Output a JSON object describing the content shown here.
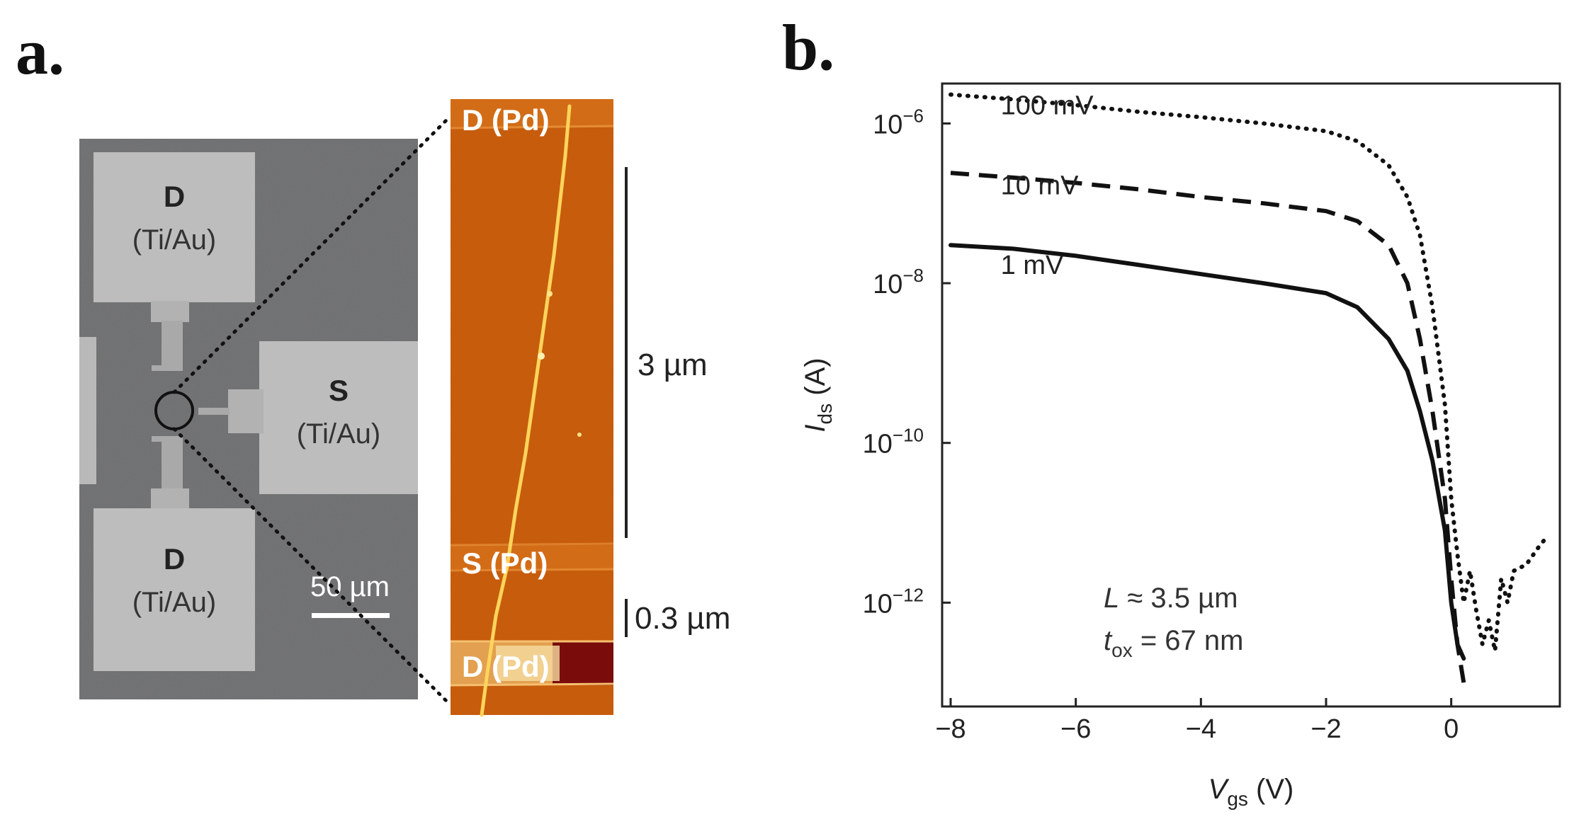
{
  "panel_a": {
    "letter": "a.",
    "sem": {
      "pads": [
        {
          "name": "D",
          "material": "(Ti/Au)"
        },
        {
          "name": "S",
          "material": "(Ti/Au)"
        },
        {
          "name": "D",
          "material": "(Ti/Au)"
        }
      ],
      "scale_bar_label": "50 µm"
    },
    "afm": {
      "labels": [
        "D (Pd)",
        "S (Pd)",
        "D (Pd)"
      ],
      "scale_long_label": "3 µm",
      "scale_short_label": "0.3 µm",
      "colors": {
        "background": "#c8580e",
        "tube": "#ffd45a",
        "electrode": "#e8892c"
      }
    }
  },
  "panel_b": {
    "letter": "b.",
    "annotations": {
      "length_symbol": "L",
      "length_rest": " ≈ 3.5 µm",
      "tox_symbol": "t",
      "tox_sub": "ox",
      "tox_rest": " = 67 nm"
    }
  },
  "chart_data": {
    "type": "line",
    "xlabel_symbol": "V",
    "xlabel_sub": "gs",
    "xlabel_unit": " (V)",
    "ylabel_symbol": "I",
    "ylabel_sub": "ds",
    "ylabel_unit": " (A)",
    "xlim": [
      -8,
      1.6
    ],
    "ylim_log10": [
      -13.3,
      -5.5
    ],
    "yscale": "log",
    "x_ticks": [
      -8,
      -6,
      -4,
      -2,
      0
    ],
    "x_tick_labels": [
      "−8",
      "−6",
      "−4",
      "−2",
      "0"
    ],
    "y_ticks_log10": [
      -6,
      -8,
      -10,
      -12
    ],
    "y_tick_labels": [
      {
        "base": "10",
        "exp": "−6"
      },
      {
        "base": "10",
        "exp": "−8"
      },
      {
        "base": "10",
        "exp": "−10"
      },
      {
        "base": "10",
        "exp": "−12"
      }
    ],
    "series": [
      {
        "name": "100 mV",
        "style": "dotted",
        "x": [
          -8,
          -7,
          -6,
          -5,
          -4,
          -3,
          -2,
          -1.5,
          -1,
          -0.7,
          -0.5,
          -0.3,
          -0.1,
          0,
          0.1,
          0.2,
          0.3,
          0.4,
          0.5,
          0.6,
          0.7,
          0.8,
          0.9,
          1.0,
          1.2,
          1.4,
          1.55
        ],
        "y": [
          2.3e-06,
          2e-06,
          1.7e-06,
          1.4e-06,
          1.2e-06,
          1e-06,
          8e-07,
          6e-07,
          3e-07,
          1.2e-07,
          4e-08,
          5e-09,
          3e-10,
          2e-11,
          4e-12,
          1e-12,
          2.5e-12,
          8e-13,
          3e-13,
          6e-13,
          2.5e-13,
          2e-12,
          1e-12,
          2.5e-12,
          3e-12,
          5e-12,
          7e-12
        ]
      },
      {
        "name": "10 mV",
        "style": "dashed",
        "x": [
          -8,
          -7,
          -6,
          -5,
          -4,
          -3,
          -2,
          -1.5,
          -1,
          -0.7,
          -0.5,
          -0.3,
          -0.1,
          0,
          0.1,
          0.2
        ],
        "y": [
          2.4e-07,
          2.1e-07,
          1.8e-07,
          1.5e-07,
          1.2e-07,
          1e-07,
          8e-08,
          6e-08,
          3e-08,
          1e-08,
          2e-09,
          2.5e-10,
          2e-11,
          2e-12,
          3e-13,
          1e-13
        ]
      },
      {
        "name": "1 mV",
        "style": "solid",
        "x": [
          -8,
          -7,
          -6,
          -5,
          -4,
          -3,
          -2,
          -1.5,
          -1,
          -0.7,
          -0.5,
          -0.3,
          -0.1,
          0,
          0.1,
          0.2
        ],
        "y": [
          3e-08,
          2.7e-08,
          2.2e-08,
          1.7e-08,
          1.3e-08,
          1e-08,
          7.5e-09,
          5e-09,
          2e-09,
          8e-10,
          2.5e-10,
          6e-11,
          8e-12,
          1e-12,
          3e-13,
          2e-13
        ]
      }
    ],
    "series_labels": [
      {
        "text": "100 mV",
        "at": [
          -7.2,
          1.3e-06
        ]
      },
      {
        "text": "10 mV",
        "at": [
          -7.2,
          1.3e-07
        ]
      },
      {
        "text": "1 mV",
        "at": [
          -7.2,
          1.3e-08
        ]
      }
    ],
    "grid": false,
    "legend": "inline labels"
  }
}
